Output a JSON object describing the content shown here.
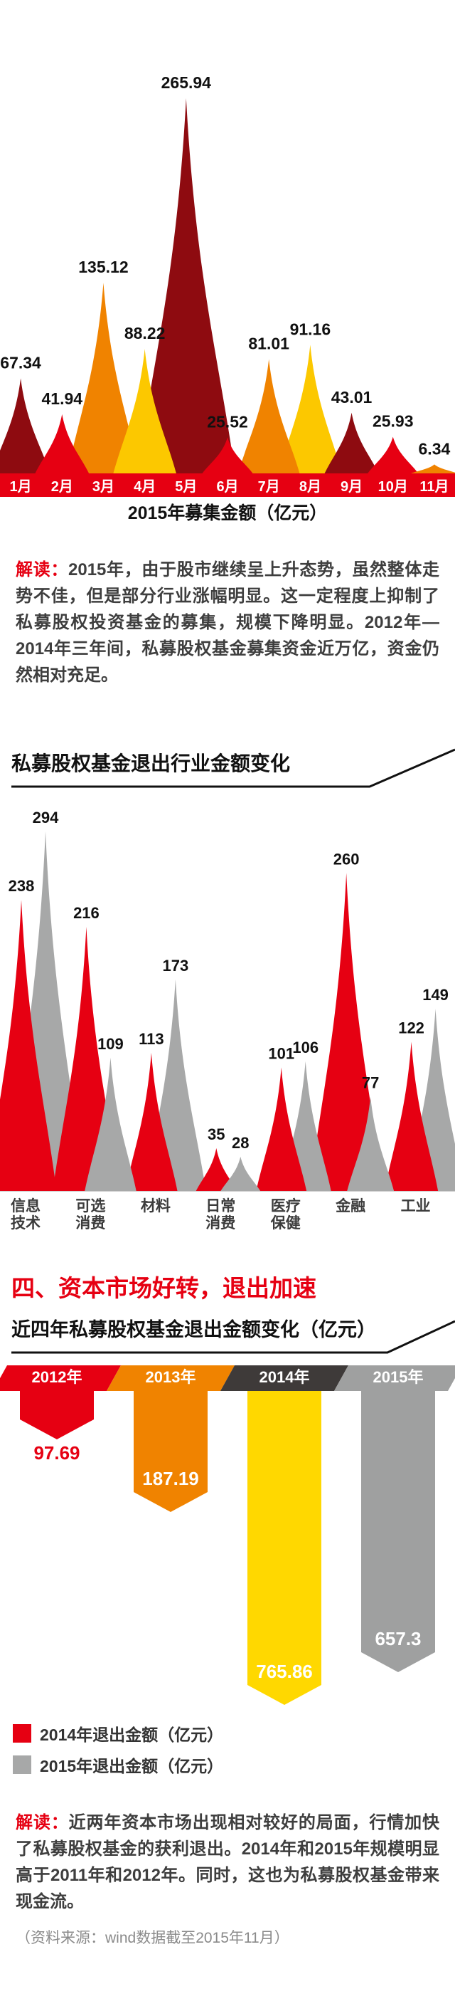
{
  "colors": {
    "dark_red": "#8e0b10",
    "red": "#e60012",
    "orange": "#f08300",
    "yellow": "#fcc800",
    "gray": "#a7a8a8"
  },
  "chart_data": [
    {
      "id": "monthly_fundraising_2015",
      "type": "area",
      "subtype": "flame-peaks",
      "title": "2015年募集金额（亿元）",
      "categories": [
        "1月",
        "2月",
        "3月",
        "4月",
        "5月",
        "6月",
        "7月",
        "8月",
        "9月",
        "10月",
        "11月"
      ],
      "values": [
        67.34,
        41.94,
        135.12,
        88.22,
        265.94,
        25.52,
        81.01,
        91.16,
        43.01,
        25.93,
        6.34
      ],
      "colors": [
        "dark_red",
        "red",
        "orange",
        "yellow",
        "dark_red",
        "red",
        "orange",
        "yellow",
        "dark_red",
        "red",
        "orange"
      ],
      "ylim": [
        0,
        265.94
      ],
      "axis_strip_color": "#e60012"
    },
    {
      "id": "exit_amount_by_industry",
      "type": "area",
      "subtype": "flame-peaks",
      "title": "私募股权基金退出行业金额变化",
      "categories": [
        "信息技术",
        "可选消费",
        "材料",
        "日常消费",
        "医疗保健",
        "金融",
        "工业"
      ],
      "category_lines": [
        [
          "信息",
          "技术"
        ],
        [
          "可选",
          "消费"
        ],
        [
          "材料"
        ],
        [
          "日常",
          "消费"
        ],
        [
          "医疗",
          "保健"
        ],
        [
          "金融"
        ],
        [
          "工业"
        ]
      ],
      "series": [
        {
          "name": "2014年退出金额（亿元）",
          "color": "red",
          "values": [
            238,
            216,
            113,
            35,
            101,
            260,
            122
          ]
        },
        {
          "name": "2015年退出金额（亿元）",
          "color": "gray",
          "values": [
            294,
            109,
            173,
            28,
            106,
            77,
            149
          ]
        }
      ],
      "ylim": [
        0,
        294
      ]
    },
    {
      "id": "exit_amount_by_year",
      "type": "bar",
      "subtype": "ribbon-down",
      "title": "近四年私募股权基金退出金额变化（亿元）",
      "categories": [
        "2012年",
        "2013年",
        "2014年",
        "2015年"
      ],
      "values": [
        97.69,
        187.19,
        765.86,
        657.3
      ],
      "band_colors": [
        "#e60012",
        "#f08300",
        "#3e3a39",
        "#9fa0a0"
      ],
      "ribbon_colors": [
        "#e60012",
        "#f08300",
        "#ffd800",
        "#9fa0a0"
      ],
      "ribbon_lengths": [
        68,
        170,
        441,
        395
      ],
      "label_inside": [
        false,
        true,
        true,
        true
      ]
    }
  ],
  "interpretation1": {
    "label": "解读：",
    "text": "2015年，由于股市继续呈上升态势，虽然整体走势不佳，但是部分行业涨幅明显。这一定程度上抑制了私募股权投资基金的募集，规模下降明显。2012年—2014年三年间，私募股权基金募集资金近万亿，资金仍然相对充足。"
  },
  "section_header": "四、资本市场好转，退出加速",
  "legend": [
    {
      "color": "#e60012",
      "label": "2014年退出金额（亿元）"
    },
    {
      "color": "#a7a8a8",
      "label": "2015年退出金额（亿元）"
    }
  ],
  "interpretation2": {
    "label": "解读：",
    "text": "近两年资本市场出现相对较好的局面，行情加快了私募股权基金的获利退出。2014年和2015年规模明显高于2011年和2012年。同时，这也为私募股权基金带来现金流。"
  },
  "footer": "（资料来源：wind数据截至2015年11月）"
}
